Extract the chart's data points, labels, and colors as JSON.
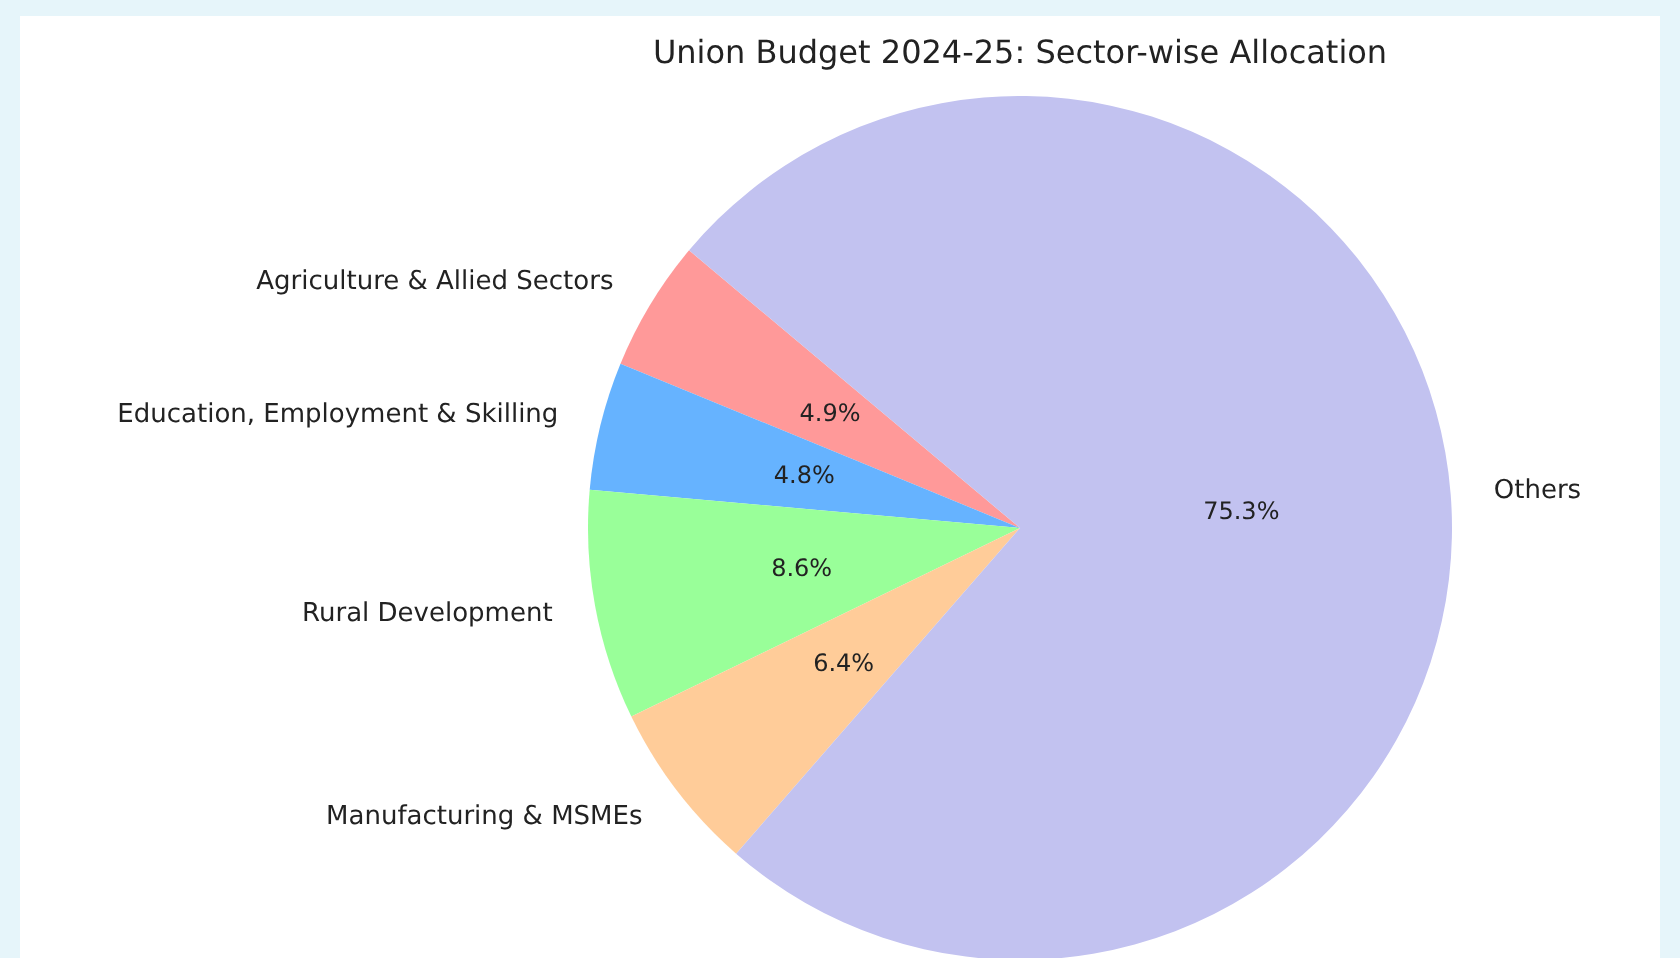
{
  "chart_data": {
    "type": "pie",
    "title": "Union Budget 2024-25: Sector-wise Allocation",
    "categories": [
      "Agriculture & Allied Sectors",
      "Education, Employment & Skilling",
      "Rural Development",
      "Manufacturing & MSMEs",
      "Others"
    ],
    "values": [
      4.9,
      4.8,
      8.6,
      6.4,
      75.3
    ],
    "colors": [
      "#ff9999",
      "#66b3ff",
      "#99ff99",
      "#ffcc99",
      "#c2c2f0"
    ],
    "value_labels": [
      "4.9%",
      "4.8%",
      "8.6%",
      "6.4%",
      "75.3%"
    ],
    "legend": false
  }
}
